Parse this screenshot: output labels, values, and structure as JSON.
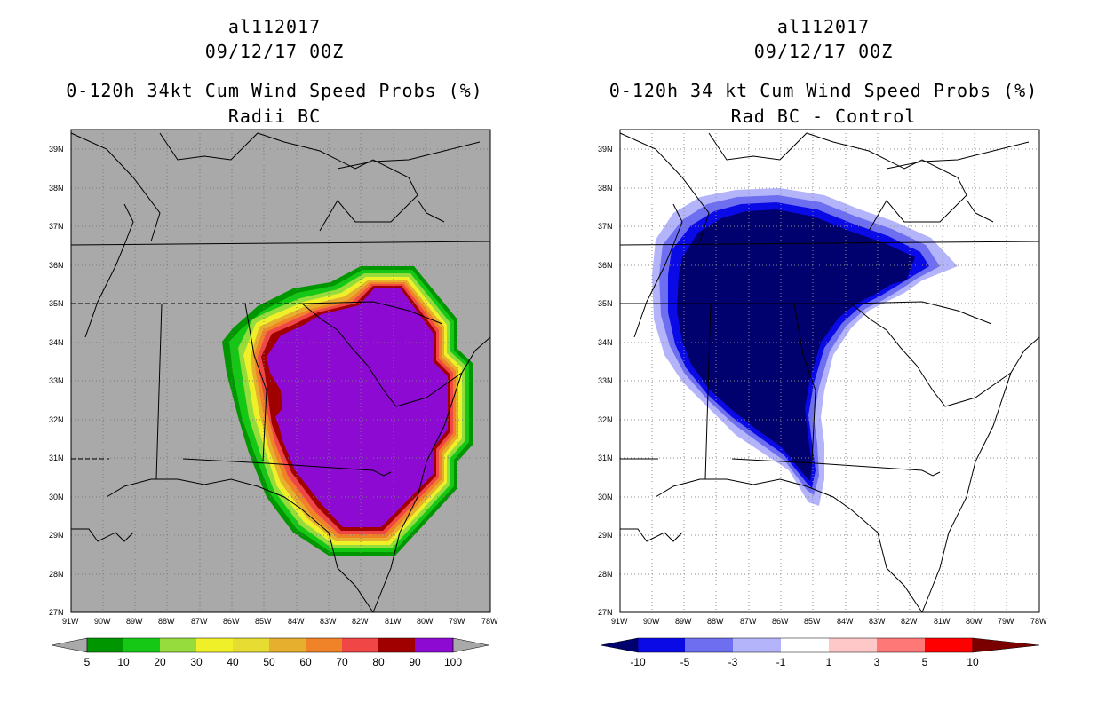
{
  "left": {
    "title_storm": "al112017",
    "title_time": "09/12/17 00Z",
    "title_product": "0-120h 34kt Cum Wind Speed Probs (%)",
    "title_sub": "Radii BC",
    "background_color": "#a9a9a9",
    "colorbar": {
      "labels": [
        "5",
        "10",
        "20",
        "30",
        "40",
        "50",
        "60",
        "70",
        "80",
        "90",
        "100"
      ],
      "colors": [
        "#009600",
        "#16c816",
        "#96dc3c",
        "#f0f028",
        "#e6dc32",
        "#e6af2d",
        "#f08228",
        "#f04646",
        "#a00000",
        "#8c0ad2"
      ]
    }
  },
  "right": {
    "title_storm": "al112017",
    "title_time": "09/12/17 00Z",
    "title_product": "0-120h 34 kt Cum Wind Speed Probs (%)",
    "title_sub": "Rad BC - Control",
    "background_color": "#ffffff",
    "colorbar": {
      "labels": [
        "-10",
        "-5",
        "-3",
        "-1",
        "1",
        "3",
        "5",
        "10"
      ],
      "colors": [
        "#00006e",
        "#0a0ae6",
        "#6e6ef0",
        "#b4b4fa",
        "#ffffff",
        "#ffc8c8",
        "#ff7878",
        "#ff0000",
        "#7a0000"
      ]
    }
  },
  "axes": {
    "lon_labels": [
      "91W",
      "90W",
      "89W",
      "88W",
      "87W",
      "86W",
      "85W",
      "84W",
      "83W",
      "82W",
      "81W",
      "80W",
      "79W",
      "78W"
    ],
    "lat_labels": [
      "39N",
      "38N",
      "37N",
      "36N",
      "35N",
      "34N",
      "33N",
      "32N",
      "31N",
      "30N",
      "29N",
      "28N",
      "27N"
    ],
    "lon_range": [
      -91,
      -78
    ],
    "lat_range": [
      27,
      39.5
    ]
  }
}
